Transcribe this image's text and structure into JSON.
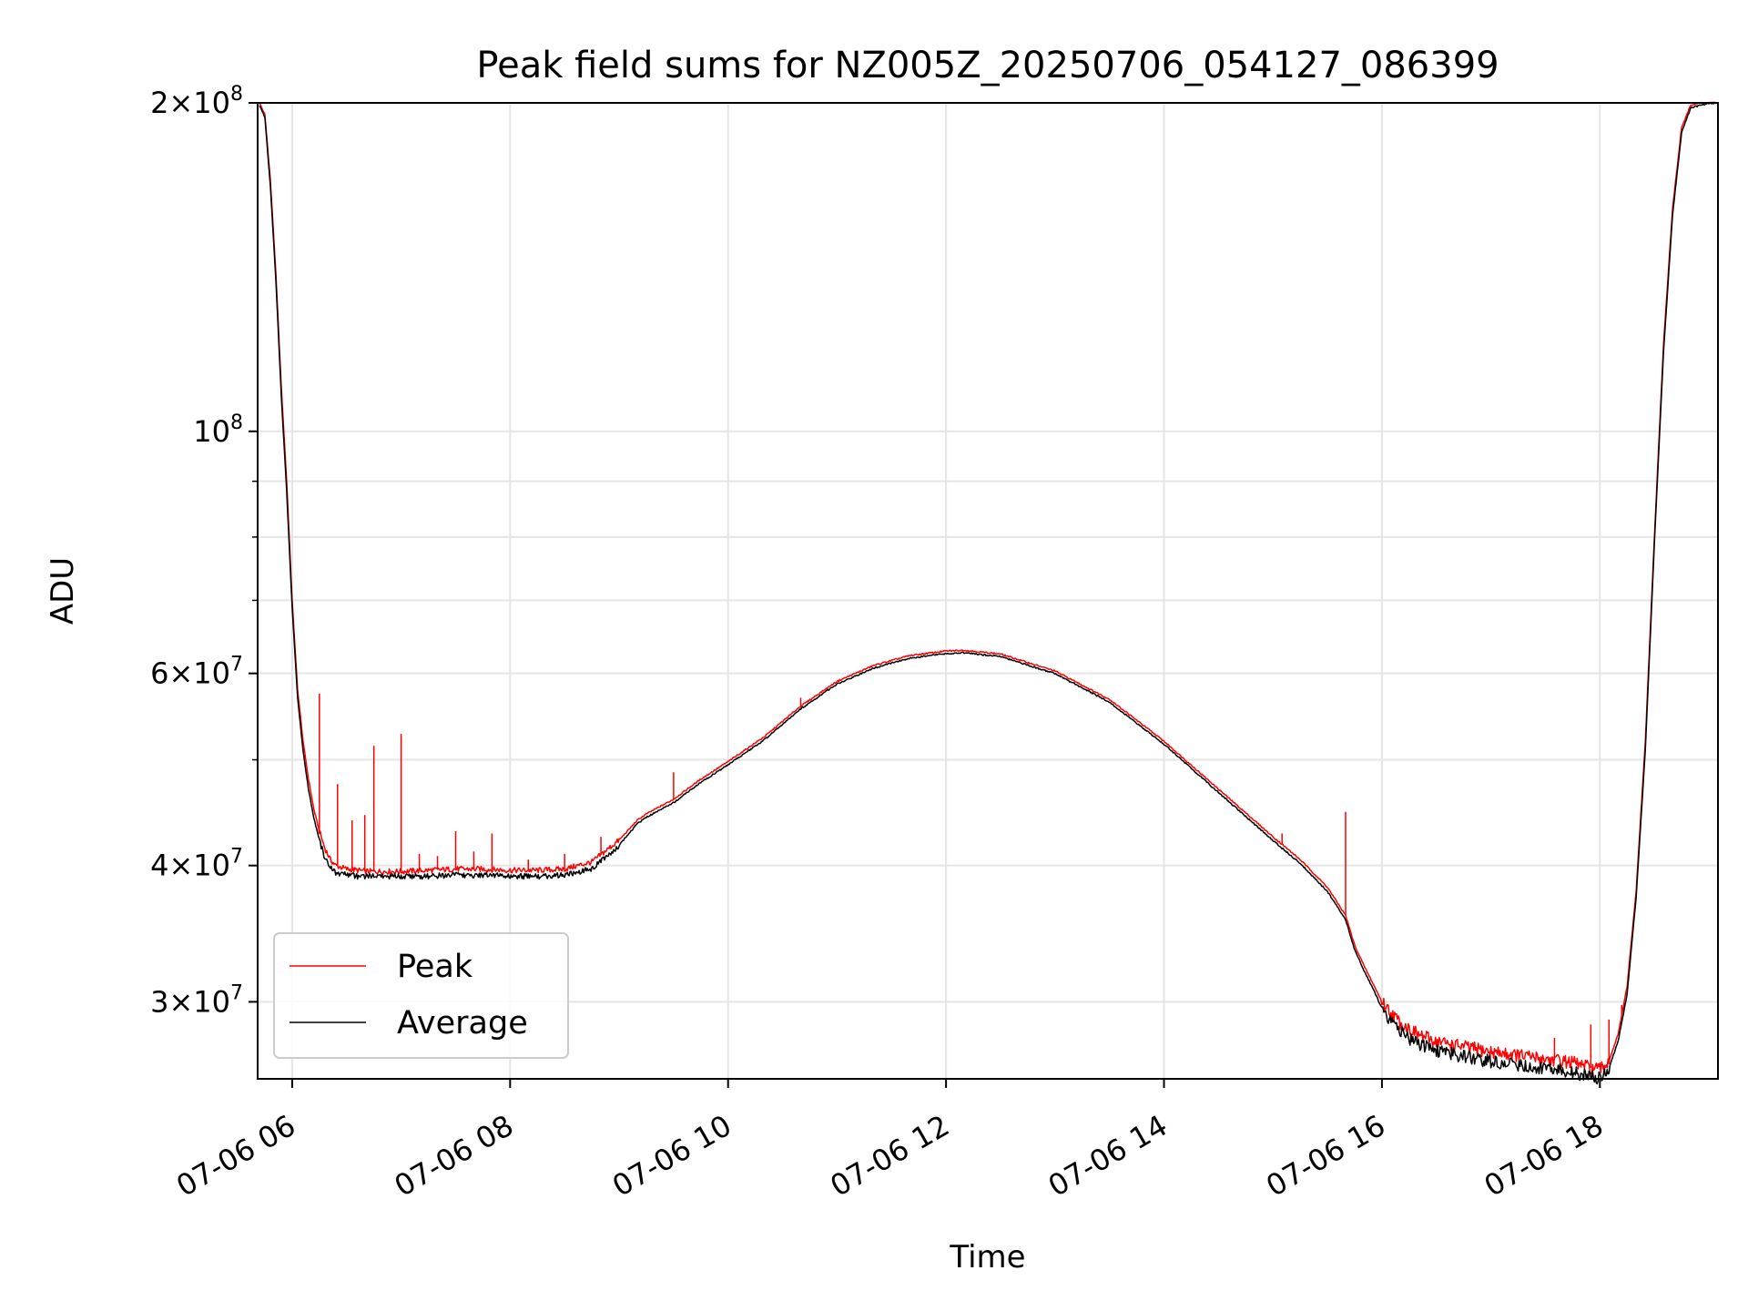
{
  "chart_data": {
    "type": "line",
    "title": "Peak field sums for NZ005Z_20250706_054127_086399",
    "xlabel": "Time",
    "ylabel": "ADU",
    "yscale": "log",
    "ylim": [
      25500000,
      200000000
    ],
    "xlim": [
      "2025-07-06 05:41",
      "2025-07-06 19:05"
    ],
    "grid": true,
    "legend_position": "lower-left",
    "x_tick_labels": [
      "07-06 06",
      "07-06 08",
      "07-06 10",
      "07-06 12",
      "07-06 14",
      "07-06 16",
      "07-06 18"
    ],
    "y_tick_labels": [
      {
        "mantissa": "2",
        "exponent": "8"
      },
      {
        "mantissa": "",
        "exponent": "8"
      },
      {
        "mantissa": "6",
        "exponent": "7"
      },
      {
        "mantissa": "4",
        "exponent": "7"
      },
      {
        "mantissa": "3",
        "exponent": "7"
      }
    ],
    "x": [
      "05:42",
      "05:45",
      "05:48",
      "05:51",
      "05:54",
      "05:57",
      "06:00",
      "06:03",
      "06:06",
      "06:09",
      "06:12",
      "06:15",
      "06:18",
      "06:21",
      "06:24",
      "06:30",
      "06:36",
      "06:42",
      "06:48",
      "06:54",
      "07:00",
      "07:15",
      "07:30",
      "07:45",
      "08:00",
      "08:15",
      "08:30",
      "08:45",
      "09:00",
      "09:10",
      "09:15",
      "09:30",
      "09:45",
      "10:00",
      "10:20",
      "10:40",
      "11:00",
      "11:20",
      "11:40",
      "12:00",
      "12:10",
      "12:30",
      "13:00",
      "13:30",
      "14:00",
      "14:30",
      "15:00",
      "15:15",
      "15:30",
      "15:40",
      "15:45",
      "15:50",
      "15:55",
      "16:00",
      "16:10",
      "16:20",
      "16:30",
      "16:45",
      "17:00",
      "17:15",
      "17:30",
      "17:45",
      "17:55",
      "18:00",
      "18:05",
      "18:10",
      "18:15",
      "18:20",
      "18:25",
      "18:30",
      "18:35",
      "18:40",
      "18:45",
      "18:50",
      "18:55",
      "19:00",
      "19:04"
    ],
    "series": [
      {
        "name": "Peak",
        "color": "#ff0000",
        "values": [
          200000000,
          195000000,
          170000000,
          140000000,
          110000000,
          90000000,
          70000000,
          58000000,
          52000000,
          48000000,
          45000000,
          43000000,
          41500000,
          40500000,
          40000000,
          39700000,
          39600000,
          39500000,
          39500000,
          39500000,
          39500000,
          39600000,
          39700000,
          39700000,
          39600000,
          39600000,
          39700000,
          40300000,
          42200000,
          44000000,
          44600000,
          46000000,
          48000000,
          49800000,
          52500000,
          56000000,
          59000000,
          61000000,
          62300000,
          62900000,
          63000000,
          62500000,
          60300000,
          56800000,
          52000000,
          47000000,
          42500000,
          40500000,
          38200000,
          36000000,
          33800000,
          32400000,
          31200000,
          30000000,
          28700000,
          28000000,
          27600000,
          27300000,
          27000000,
          26800000,
          26600000,
          26400000,
          26100000,
          26000000,
          26500000,
          28000000,
          31000000,
          38000000,
          52000000,
          80000000,
          120000000,
          160000000,
          190000000,
          199000000,
          200000000,
          200000000,
          200000000
        ]
      },
      {
        "name": "Average",
        "color": "#000000",
        "values": [
          199000000,
          194000000,
          168000000,
          138000000,
          108000000,
          88000000,
          69000000,
          57000000,
          51000000,
          47000000,
          44200000,
          42200000,
          40800000,
          40000000,
          39500000,
          39300000,
          39200000,
          39200000,
          39200000,
          39200000,
          39200000,
          39200000,
          39300000,
          39300000,
          39200000,
          39200000,
          39300000,
          39800000,
          41800000,
          43700000,
          44300000,
          45700000,
          47700000,
          49500000,
          52200000,
          55700000,
          58700000,
          60700000,
          62000000,
          62600000,
          62700000,
          62200000,
          60000000,
          56500000,
          51700000,
          46700000,
          42200000,
          40200000,
          37900000,
          35700000,
          33500000,
          32100000,
          30900000,
          29600000,
          28300000,
          27600000,
          27200000,
          26900000,
          26600000,
          26400000,
          26200000,
          26000000,
          25800000,
          25700000,
          26100000,
          27600000,
          30500000,
          37500000,
          51000000,
          79000000,
          118000000,
          158000000,
          188000000,
          198000000,
          199000000,
          200000000,
          200000000
        ]
      }
    ],
    "spikes": [
      {
        "x": "06:15",
        "value": 57500000
      },
      {
        "x": "06:25",
        "value": 47500000
      },
      {
        "x": "06:33",
        "value": 44000000
      },
      {
        "x": "06:40",
        "value": 44500000
      },
      {
        "x": "06:45",
        "value": 51500000
      },
      {
        "x": "07:00",
        "value": 52800000
      },
      {
        "x": "07:10",
        "value": 41000000
      },
      {
        "x": "07:20",
        "value": 40800000
      },
      {
        "x": "07:30",
        "value": 43000000
      },
      {
        "x": "07:40",
        "value": 41200000
      },
      {
        "x": "07:50",
        "value": 42800000
      },
      {
        "x": "08:10",
        "value": 40500000
      },
      {
        "x": "08:30",
        "value": 41000000
      },
      {
        "x": "08:50",
        "value": 42500000
      },
      {
        "x": "09:30",
        "value": 48700000
      },
      {
        "x": "10:40",
        "value": 57000000
      },
      {
        "x": "15:05",
        "value": 42800000
      },
      {
        "x": "15:40",
        "value": 44800000
      },
      {
        "x": "17:35",
        "value": 27800000
      },
      {
        "x": "17:55",
        "value": 28600000
      },
      {
        "x": "18:05",
        "value": 28900000
      },
      {
        "x": "18:12",
        "value": 29800000
      }
    ]
  }
}
